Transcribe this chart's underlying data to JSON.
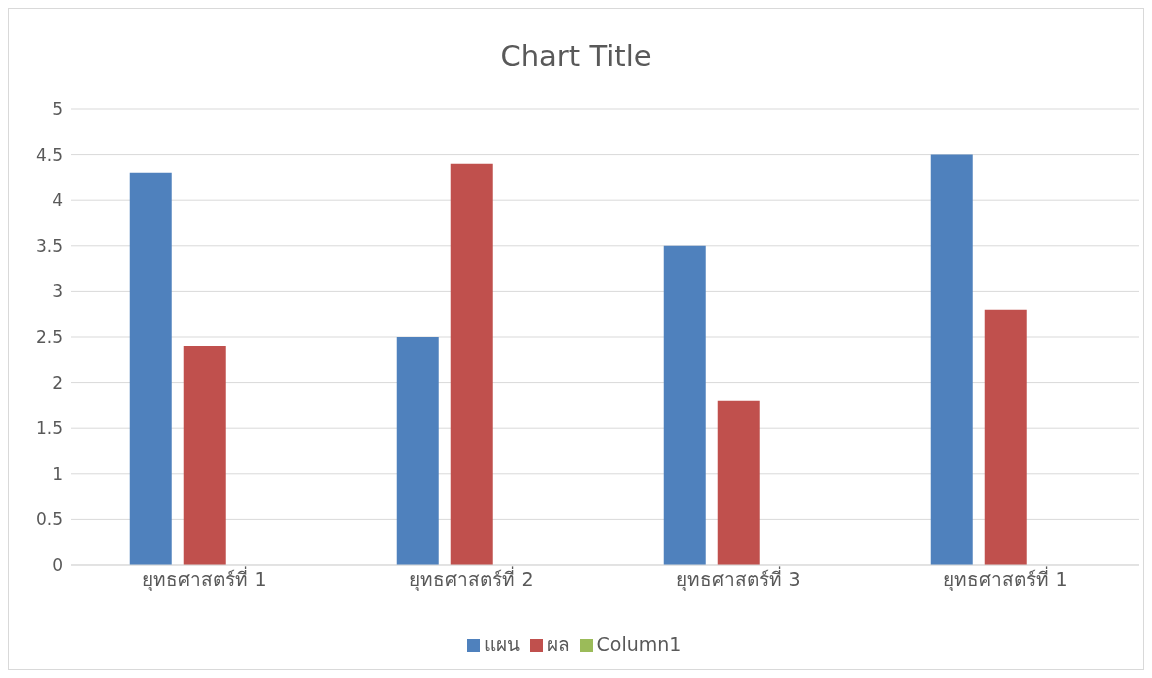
{
  "chart_data": {
    "type": "bar",
    "title": "Chart Title",
    "categories": [
      "ยุทธศาสตร์ที่ 1",
      "ยุทธศาสตร์ที่ 2",
      "ยุทธศาสตร์ที่ 3",
      "ยุทธศาสตร์ที่ 1"
    ],
    "series": [
      {
        "name": "แผน",
        "color": "#4f81bd",
        "values": [
          4.3,
          2.5,
          3.5,
          4.5
        ]
      },
      {
        "name": "ผล",
        "color": "#c0504d",
        "values": [
          2.4,
          4.4,
          1.8,
          2.8
        ]
      },
      {
        "name": "Column1",
        "color": "#9bbb59",
        "values": [
          null,
          null,
          null,
          null
        ]
      }
    ],
    "ylim": [
      0,
      5
    ],
    "yticks": [
      0,
      0.5,
      1,
      1.5,
      2,
      2.5,
      3,
      3.5,
      4,
      4.5,
      5
    ],
    "grid": "y",
    "legend": "bottom"
  }
}
